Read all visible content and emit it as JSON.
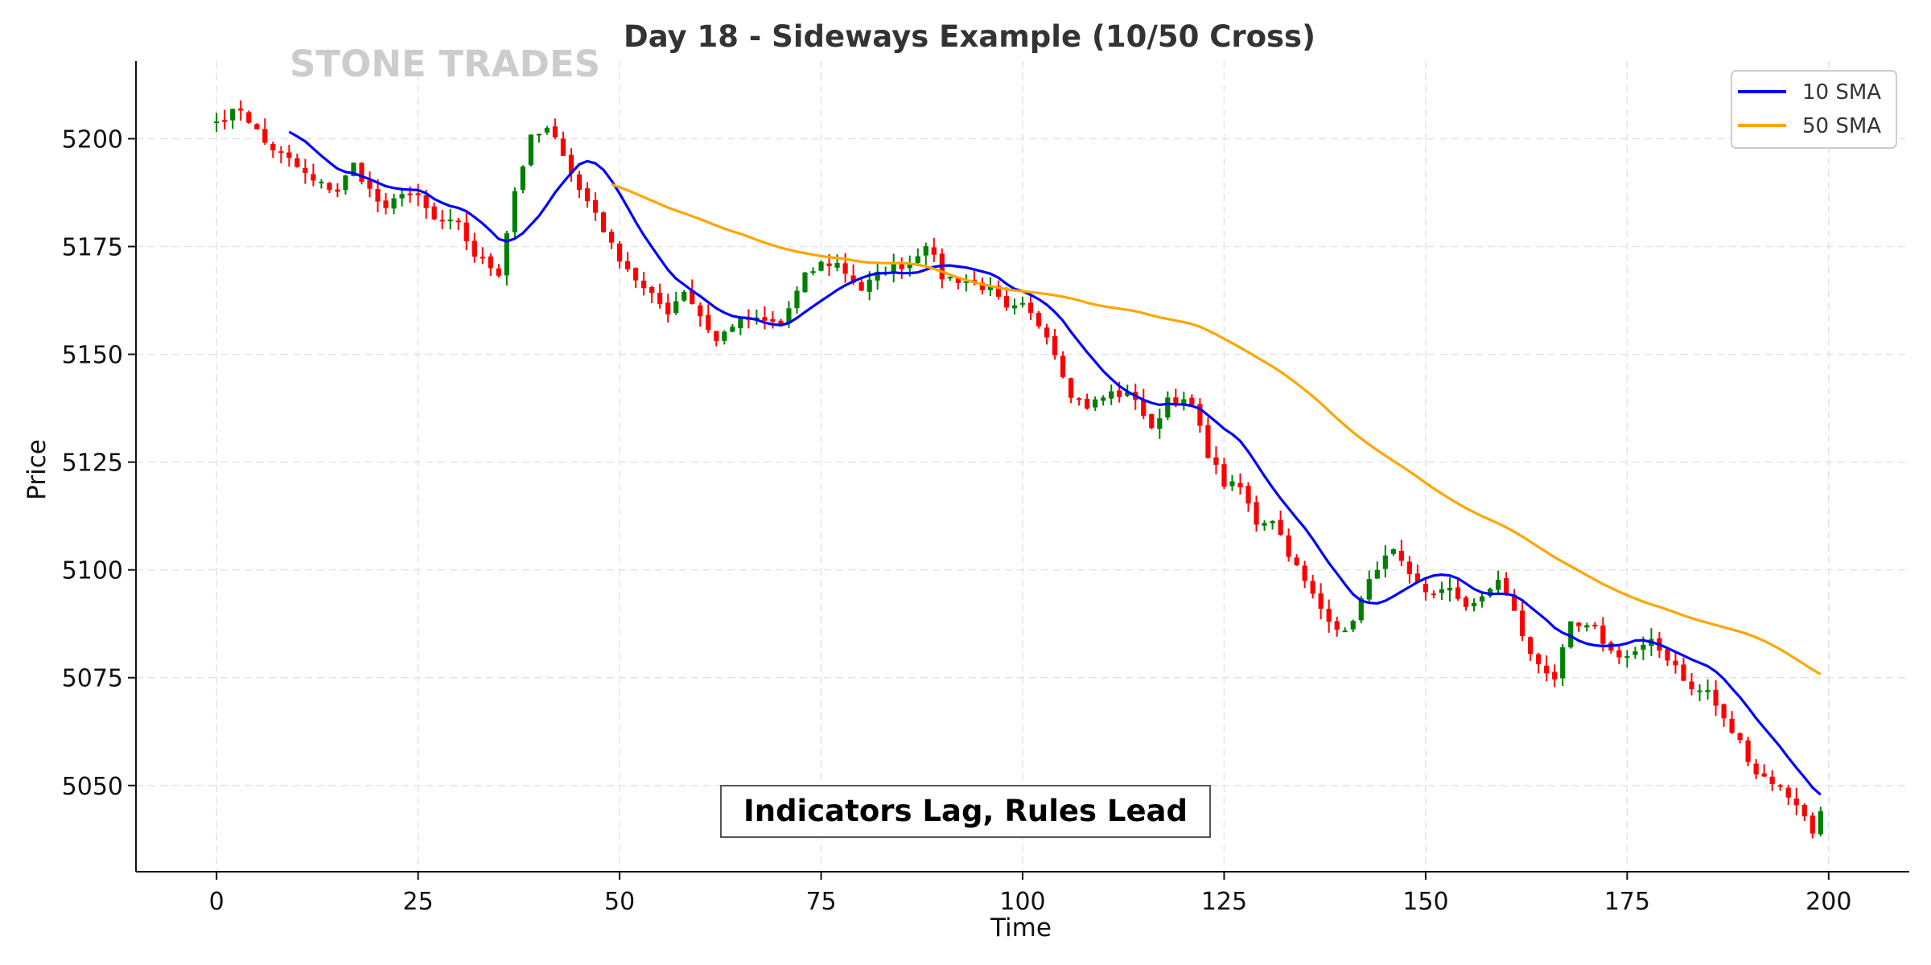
{
  "chart_data": {
    "type": "candlestick",
    "title": "Day 18 - Sideways Example (10/50 Cross)",
    "xlabel": "Time",
    "ylabel": "Price",
    "xlim": [
      -10,
      210
    ],
    "ylim": [
      5030,
      5218
    ],
    "x_ticks": [
      0,
      25,
      50,
      75,
      100,
      125,
      150,
      175,
      200
    ],
    "y_ticks": [
      5050,
      5075,
      5100,
      5125,
      5150,
      5175,
      5200
    ],
    "grid": true,
    "legend_position": "top-right",
    "watermark": "STONE TRADES",
    "annotation": "Indicators Lag, Rules Lead",
    "colors": {
      "up": "#008000",
      "down": "#ff0000",
      "sma10": "#0000ff",
      "sma50": "#ffa500",
      "grid": "#e3e3e3"
    },
    "close_anchors": [
      [
        0,
        5204
      ],
      [
        3,
        5207
      ],
      [
        6,
        5199
      ],
      [
        9,
        5195
      ],
      [
        12,
        5190
      ],
      [
        15,
        5188
      ],
      [
        17,
        5194
      ],
      [
        19,
        5188
      ],
      [
        21,
        5183
      ],
      [
        23,
        5188
      ],
      [
        25,
        5186
      ],
      [
        27,
        5181
      ],
      [
        30,
        5180
      ],
      [
        32,
        5173
      ],
      [
        35,
        5169
      ],
      [
        37,
        5188
      ],
      [
        39,
        5200
      ],
      [
        41,
        5202
      ],
      [
        43,
        5197
      ],
      [
        45,
        5188
      ],
      [
        47,
        5183
      ],
      [
        49,
        5175
      ],
      [
        51,
        5170
      ],
      [
        53,
        5165
      ],
      [
        56,
        5160
      ],
      [
        58,
        5165
      ],
      [
        60,
        5159
      ],
      [
        62,
        5153
      ],
      [
        64,
        5157
      ],
      [
        66,
        5158
      ],
      [
        70,
        5157
      ],
      [
        73,
        5168
      ],
      [
        75,
        5171
      ],
      [
        77,
        5171
      ],
      [
        80,
        5165
      ],
      [
        83,
        5170
      ],
      [
        86,
        5171
      ],
      [
        88,
        5176
      ],
      [
        90,
        5168
      ],
      [
        93,
        5167
      ],
      [
        96,
        5165
      ],
      [
        98,
        5160
      ],
      [
        100,
        5161
      ],
      [
        103,
        5155
      ],
      [
        106,
        5141
      ],
      [
        108,
        5138
      ],
      [
        111,
        5141
      ],
      [
        114,
        5140
      ],
      [
        116,
        5132
      ],
      [
        118,
        5140
      ],
      [
        121,
        5138
      ],
      [
        123,
        5127
      ],
      [
        125,
        5120
      ],
      [
        127,
        5119
      ],
      [
        129,
        5111
      ],
      [
        131,
        5112
      ],
      [
        133,
        5104
      ],
      [
        135,
        5097
      ],
      [
        137,
        5091
      ],
      [
        140,
        5085
      ],
      [
        142,
        5093
      ],
      [
        144,
        5101
      ],
      [
        146,
        5104
      ],
      [
        148,
        5098
      ],
      [
        150,
        5095
      ],
      [
        153,
        5095
      ],
      [
        155,
        5092
      ],
      [
        157,
        5093
      ],
      [
        159,
        5098
      ],
      [
        161,
        5090
      ],
      [
        163,
        5080
      ],
      [
        166,
        5075
      ],
      [
        168,
        5087
      ],
      [
        171,
        5086
      ],
      [
        173,
        5081
      ],
      [
        175,
        5080
      ],
      [
        178,
        5083
      ],
      [
        181,
        5078
      ],
      [
        183,
        5072
      ],
      [
        185,
        5072
      ],
      [
        187,
        5065
      ],
      [
        189,
        5060
      ],
      [
        191,
        5053
      ],
      [
        193,
        5051
      ],
      [
        196,
        5046
      ],
      [
        198,
        5039
      ],
      [
        199,
        5045
      ]
    ],
    "series": [
      {
        "name": "10 SMA",
        "window": 10,
        "color": "#0000ff"
      },
      {
        "name": "50 SMA",
        "window": 50,
        "color": "#ffa500"
      }
    ]
  }
}
